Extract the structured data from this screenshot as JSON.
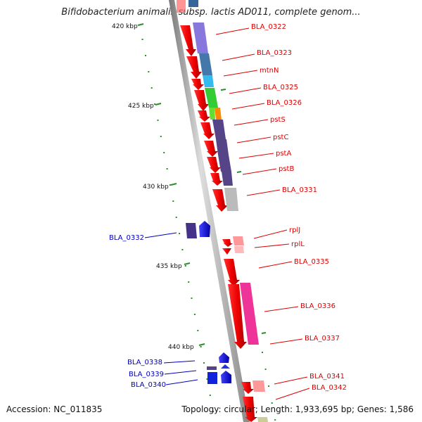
{
  "title": "Bifidobacterium animalis subsp. lactis AD011, complete genom...",
  "accession": "Accession: NC_011835",
  "summary": "Topology: circular; Length: 1,933,695 bp; Genes: 1,586",
  "colors": {
    "forward_label": "#dd0000",
    "reverse_label": "#0000bb",
    "backbone": "#999999",
    "tick": "#2d8c2d"
  },
  "kbp_ticks": [
    "420 kbp",
    "425 kbp",
    "430 kbp",
    "435 kbp",
    "440 kbp"
  ],
  "forward_genes": [
    "BLA_0322",
    "BLA_0323",
    "mtnN",
    "BLA_0325",
    "BLA_0326",
    "pstS",
    "pstC",
    "pstA",
    "pstB",
    "BLA_0331",
    "rplJ",
    "rplL",
    "BLA_0335",
    "BLA_0336",
    "BLA_0337",
    "BLA_0341",
    "BLA_0342"
  ],
  "reverse_genes": [
    "BLA_0332",
    "BLA_0338",
    "BLA_0339",
    "BLA_0340"
  ]
}
